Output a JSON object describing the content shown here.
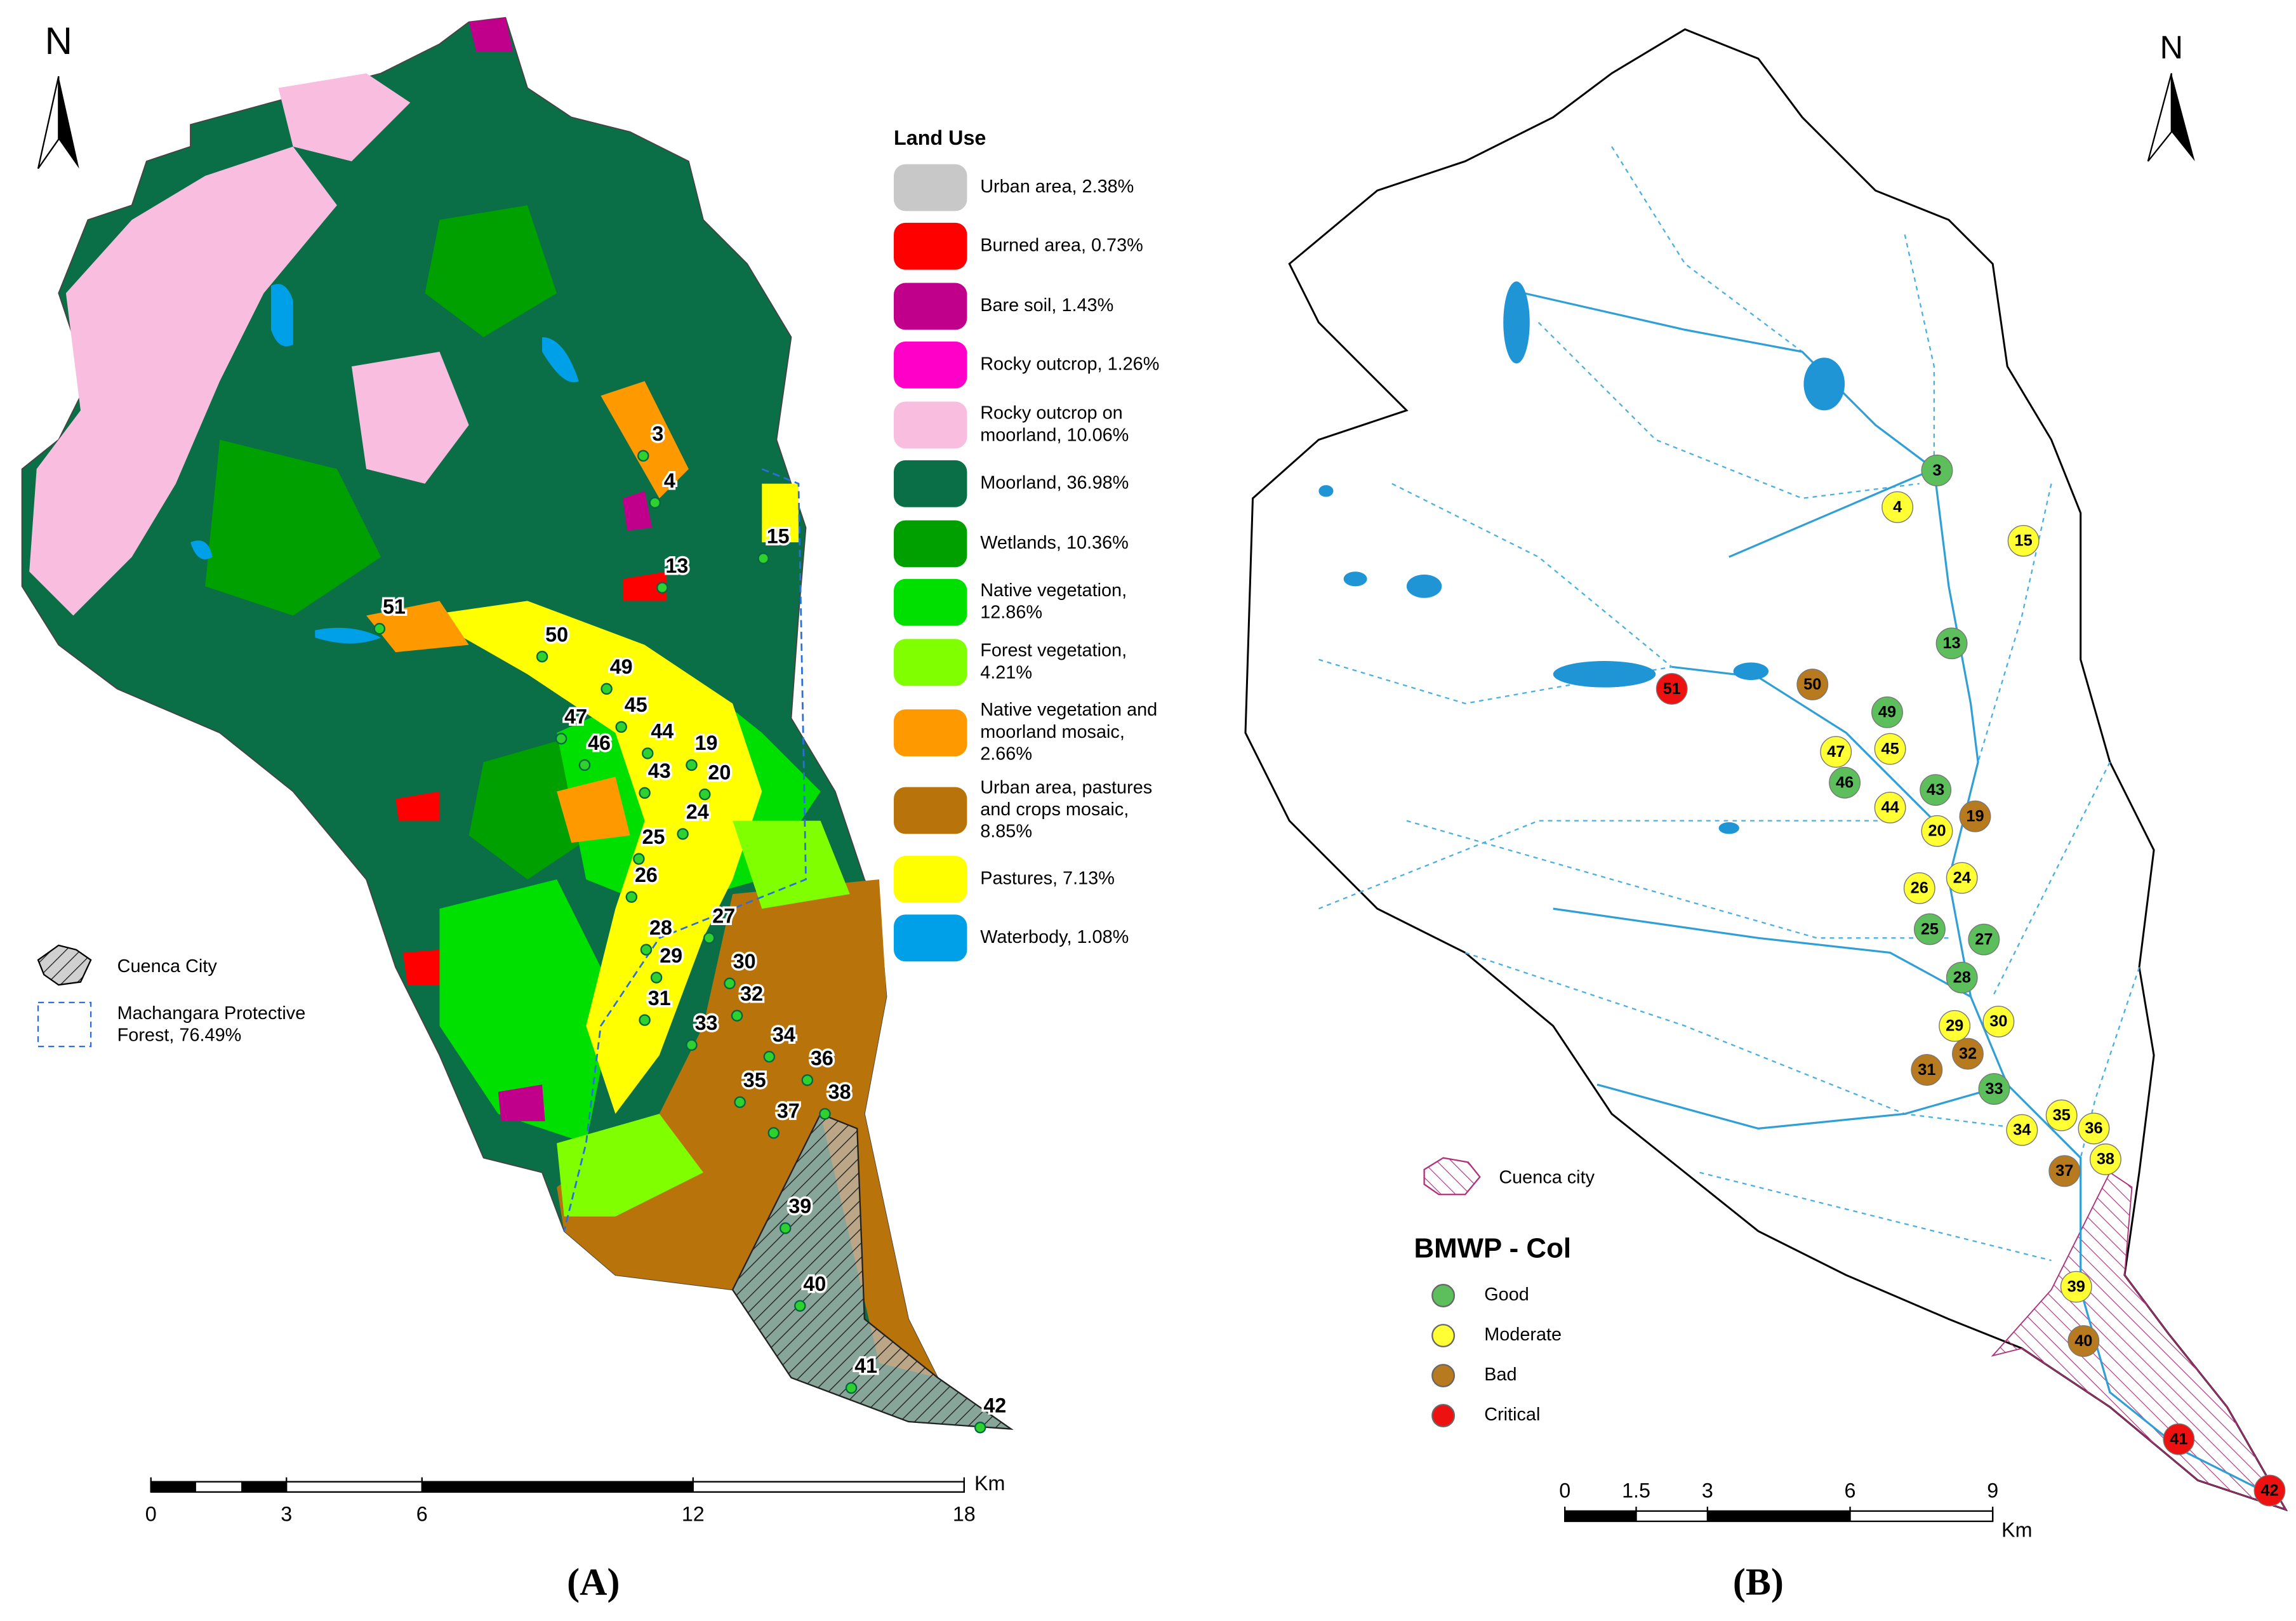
{
  "panel_a": {
    "north": "N",
    "legend_title": "Land Use",
    "land_use": [
      {
        "label": [
          "Urban area, 2.38%"
        ],
        "color": "#c8c8c8"
      },
      {
        "label": [
          "Burned area, 0.73%"
        ],
        "color": "#ff0000"
      },
      {
        "label": [
          "Bare soil, 1.43%"
        ],
        "color": "#c0008a"
      },
      {
        "label": [
          "Rocky outcrop, 1.26%"
        ],
        "color": "#ff00c8"
      },
      {
        "label": [
          "Rocky outcrop on",
          "moorland, 10.06%"
        ],
        "color": "#f9bde0"
      },
      {
        "label": [
          "Moorland, 36.98%"
        ],
        "color": "#0a6e46"
      },
      {
        "label": [
          "Wetlands, 10.36%"
        ],
        "color": "#00a000"
      },
      {
        "label": [
          "Native vegetation,",
          "12.86%"
        ],
        "color": "#00e000"
      },
      {
        "label": [
          "Forest vegetation,",
          "4.21%"
        ],
        "color": "#80ff00"
      },
      {
        "label": [
          "Native vegetation and",
          "moorland mosaic,",
          "2.66%"
        ],
        "color": "#ff9900"
      },
      {
        "label": [
          "Urban area, pastures",
          "and crops mosaic,",
          "8.85%"
        ],
        "color": "#b8730a"
      },
      {
        "label": [
          "Pastures, 7.13%"
        ],
        "color": "#ffff00"
      },
      {
        "label": [
          "Waterbody, 1.08%"
        ],
        "color": "#00a0e8"
      }
    ],
    "city_label": "Cuenca City",
    "forest_label": [
      "Machangara Protective",
      "Forest, 76.49%"
    ],
    "stations": [
      "3",
      "4",
      "15",
      "13",
      "51",
      "50",
      "49",
      "45",
      "47",
      "44",
      "19",
      "46",
      "43",
      "20",
      "24",
      "25",
      "26",
      "27",
      "28",
      "29",
      "30",
      "32",
      "31",
      "33",
      "34",
      "36",
      "35",
      "38",
      "37",
      "39",
      "40",
      "41",
      "42"
    ],
    "scale_bar": {
      "ticks": [
        0,
        3,
        6,
        12,
        18
      ],
      "unit": "Km"
    },
    "caption": "(A)"
  },
  "panel_b": {
    "north": "N",
    "city_label": "Cuenca city",
    "legend_title": "BMWP - Col",
    "classes": [
      {
        "label": "Good",
        "color": "#5cbf5c"
      },
      {
        "label": "Moderate",
        "color": "#ffff33"
      },
      {
        "label": "Bad",
        "color": "#b87a1e"
      },
      {
        "label": "Critical",
        "color": "#ee1111"
      }
    ],
    "stations": [
      {
        "label": "3",
        "class": "Good"
      },
      {
        "label": "4",
        "class": "Moderate"
      },
      {
        "label": "15",
        "class": "Moderate"
      },
      {
        "label": "13",
        "class": "Good"
      },
      {
        "label": "51",
        "class": "Critical"
      },
      {
        "label": "50",
        "class": "Bad"
      },
      {
        "label": "49",
        "class": "Good"
      },
      {
        "label": "47",
        "class": "Moderate"
      },
      {
        "label": "45",
        "class": "Moderate"
      },
      {
        "label": "46",
        "class": "Good"
      },
      {
        "label": "43",
        "class": "Good"
      },
      {
        "label": "44",
        "class": "Moderate"
      },
      {
        "label": "19",
        "class": "Bad"
      },
      {
        "label": "20",
        "class": "Moderate"
      },
      {
        "label": "26",
        "class": "Moderate"
      },
      {
        "label": "24",
        "class": "Moderate"
      },
      {
        "label": "25",
        "class": "Good"
      },
      {
        "label": "27",
        "class": "Good"
      },
      {
        "label": "28",
        "class": "Good"
      },
      {
        "label": "29",
        "class": "Moderate"
      },
      {
        "label": "30",
        "class": "Moderate"
      },
      {
        "label": "31",
        "class": "Bad"
      },
      {
        "label": "32",
        "class": "Bad"
      },
      {
        "label": "33",
        "class": "Good"
      },
      {
        "label": "34",
        "class": "Moderate"
      },
      {
        "label": "35",
        "class": "Moderate"
      },
      {
        "label": "36",
        "class": "Moderate"
      },
      {
        "label": "37",
        "class": "Bad"
      },
      {
        "label": "38",
        "class": "Moderate"
      },
      {
        "label": "39",
        "class": "Moderate"
      },
      {
        "label": "40",
        "class": "Bad"
      },
      {
        "label": "41",
        "class": "Critical"
      },
      {
        "label": "42",
        "class": "Critical"
      }
    ],
    "scale_bar": {
      "ticks": [
        0,
        1.5,
        3,
        6,
        9
      ],
      "unit": "Km"
    },
    "caption": "(B)"
  }
}
